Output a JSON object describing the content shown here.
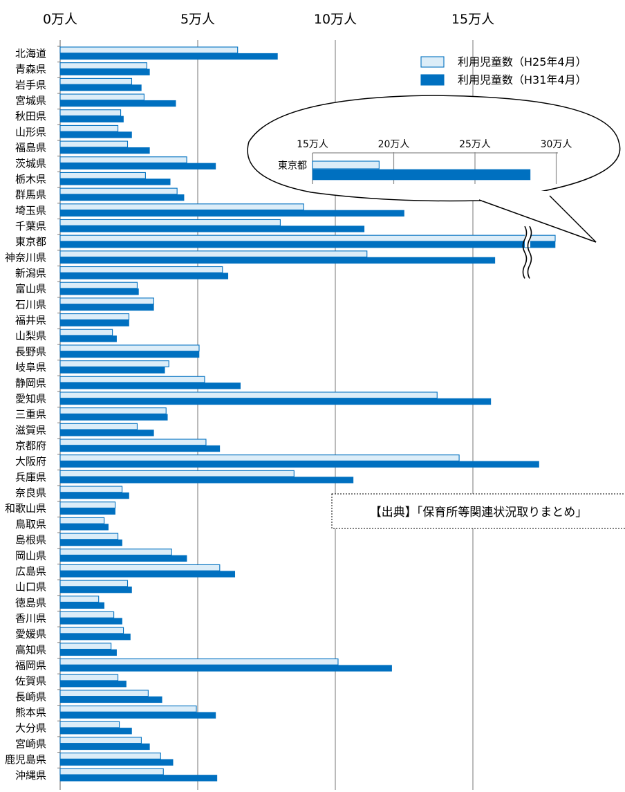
{
  "chart_data": [
    {
      "type": "bar",
      "orientation": "horizontal",
      "x_ticks": [
        "0万人",
        "5万人",
        "10万人",
        "15万人"
      ],
      "x_tick_values": [
        0,
        5,
        10,
        15
      ],
      "xlim": [
        0,
        18
      ],
      "unit": "万人",
      "grid": true,
      "legend_position": "top-right",
      "axis_break_category": "東京都",
      "categories": [
        "北海道",
        "青森県",
        "岩手県",
        "宮城県",
        "秋田県",
        "山形県",
        "福島県",
        "茨城県",
        "栃木県",
        "群馬県",
        "埼玉県",
        "千葉県",
        "東京都",
        "神奈川県",
        "新潟県",
        "富山県",
        "石川県",
        "福井県",
        "山梨県",
        "長野県",
        "岐阜県",
        "静岡県",
        "愛知県",
        "三重県",
        "滋賀県",
        "京都府",
        "大阪府",
        "兵庫県",
        "奈良県",
        "和歌山県",
        "鳥取県",
        "島根県",
        "岡山県",
        "広島県",
        "山口県",
        "徳島県",
        "香川県",
        "愛媛県",
        "高知県",
        "福岡県",
        "佐賀県",
        "長崎県",
        "熊本県",
        "大分県",
        "宮崎県",
        "鹿児島県",
        "沖縄県"
      ],
      "series": [
        {
          "name": "利用児童数（H25年4月）",
          "color": "#dcedf8",
          "stroke": "#0070c0",
          "values": [
            6.45,
            3.15,
            2.6,
            3.05,
            2.2,
            2.1,
            2.45,
            4.6,
            3.1,
            4.25,
            8.85,
            8.0,
            null,
            11.15,
            5.9,
            2.8,
            3.4,
            2.5,
            1.9,
            5.05,
            3.95,
            5.25,
            13.7,
            3.85,
            2.8,
            5.3,
            14.5,
            8.5,
            2.25,
            2.0,
            1.6,
            2.1,
            4.05,
            5.8,
            2.45,
            1.4,
            1.95,
            2.3,
            1.85,
            10.1,
            2.1,
            3.2,
            4.95,
            2.15,
            2.95,
            3.65,
            3.75
          ]
        },
        {
          "name": "利用児童数（H31年4月）",
          "color": "#0070c0",
          "stroke": "#0070c0",
          "values": [
            7.9,
            3.25,
            2.95,
            4.2,
            2.3,
            2.6,
            3.25,
            5.65,
            4.0,
            4.5,
            12.5,
            11.05,
            null,
            15.8,
            6.1,
            2.85,
            3.4,
            2.5,
            2.05,
            5.05,
            3.8,
            6.55,
            15.65,
            3.9,
            3.4,
            5.8,
            17.4,
            10.65,
            2.5,
            2.0,
            1.75,
            2.25,
            4.6,
            6.35,
            2.6,
            1.6,
            2.25,
            2.55,
            2.05,
            12.05,
            2.4,
            3.7,
            5.65,
            2.6,
            3.25,
            4.1,
            5.7
          ]
        }
      ]
    },
    {
      "type": "bar",
      "orientation": "horizontal",
      "inset": true,
      "x_ticks": [
        "15万人",
        "20万人",
        "25万人",
        "30万人"
      ],
      "x_tick_values": [
        15,
        20,
        25,
        30
      ],
      "categories": [
        "東京都"
      ],
      "series": [
        {
          "name": "利用児童数（H25年4月）",
          "color": "#dcedf8",
          "values": [
            19.1
          ]
        },
        {
          "name": "利用児童数（H31年4月）",
          "color": "#0070c0",
          "values": [
            28.4
          ]
        }
      ]
    }
  ],
  "source_note": "【出典】「保育所等関連状況取りまとめ」"
}
